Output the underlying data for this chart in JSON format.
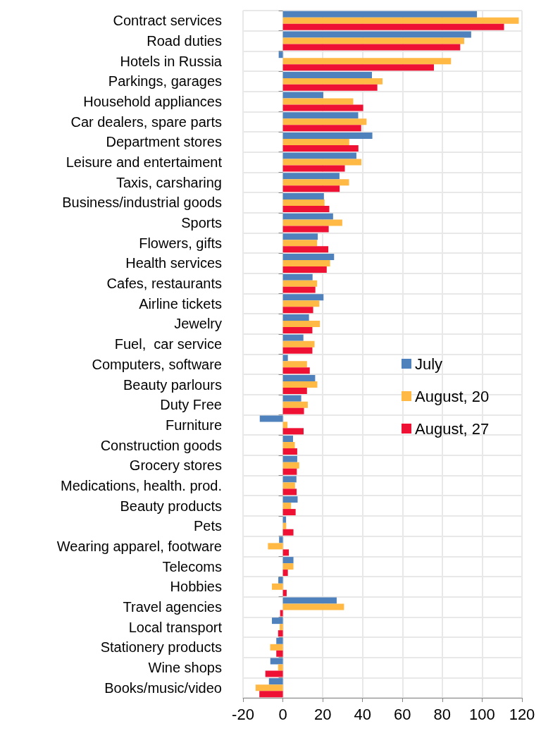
{
  "chart_data": {
    "type": "bar",
    "orientation": "horizontal",
    "categories": [
      "Contract services",
      "Road duties",
      "Hotels in Russia",
      "Parkings, garages",
      "Household appliances",
      "Car dealers, spare parts",
      "Department stores",
      "Leisure and entertaiment",
      "Taxis, carsharing",
      "Business/industrial goods",
      "Sports",
      "Flowers, gifts",
      "Health services",
      "Cafes, restaurants",
      "Airline tickets",
      "Jewelry",
      "Fuel,  car service",
      "Computers, software",
      "Beauty parlours",
      "Duty Free",
      "Furniture",
      "Construction goods",
      "Grocery stores",
      "Medications, health. prod.",
      "Beauty products",
      "Pets",
      "Wearing apparel, footware",
      "Telecoms",
      "Hobbies",
      "Travel agencies",
      "Local transport",
      "Stationery products",
      "Wine shops",
      "Books/music/video"
    ],
    "series": [
      {
        "name": "July",
        "color": "#4f81bd",
        "values": [
          97.4,
          94.5,
          -2.1,
          44.7,
          20.3,
          37.8,
          44.9,
          36.9,
          28.4,
          20.6,
          25.2,
          17.5,
          25.7,
          14.9,
          20.4,
          13.1,
          10.3,
          2.5,
          16.2,
          9.2,
          -11.6,
          5.1,
          7.2,
          6.8,
          7.4,
          1.6,
          -1.9,
          5.3,
          -2.3,
          27,
          -5.5,
          -3.3,
          -6.3,
          -7
        ]
      },
      {
        "name": "August, 20",
        "color": "#ffb944",
        "values": [
          118.4,
          91,
          84.4,
          50,
          35.3,
          42,
          33.3,
          39.4,
          33.2,
          20.9,
          29.8,
          17.2,
          23.7,
          17.2,
          18.3,
          18.6,
          15.9,
          12.1,
          17.3,
          12.5,
          2.3,
          6,
          8.2,
          6.1,
          4.1,
          1.7,
          -7.5,
          5.3,
          -5.5,
          30.7,
          -1.6,
          -6.4,
          -2.4,
          -13.7
        ]
      },
      {
        "name": "August, 27",
        "color": "#ee1133",
        "values": [
          111,
          89,
          75.8,
          47.4,
          40.3,
          39.3,
          37.9,
          31.1,
          28.5,
          23.3,
          23,
          22.8,
          22,
          16.3,
          15.2,
          14.8,
          14.8,
          13.5,
          12.1,
          10.6,
          10.4,
          7.2,
          7,
          6.9,
          6.4,
          5.3,
          3,
          2.5,
          1.9,
          -1.4,
          -2.4,
          -3.3,
          -8.8,
          -11.8
        ]
      }
    ],
    "xlim": [
      -20,
      120
    ],
    "xticks": [
      -20,
      0,
      20,
      40,
      60,
      80,
      100,
      120
    ],
    "grid": true,
    "legend": "right"
  }
}
